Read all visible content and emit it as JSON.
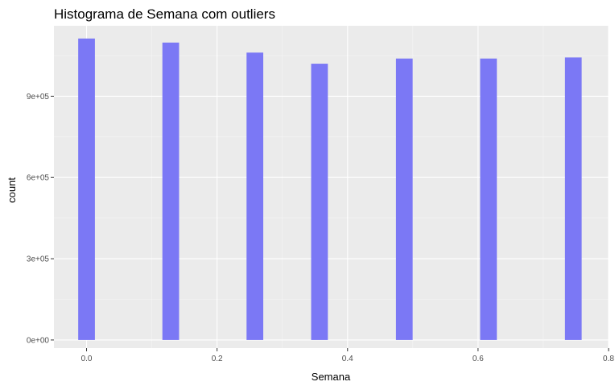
{
  "chart_data": {
    "type": "bar",
    "title": "Histograma de Semana com outliers",
    "xlabel": "Semana",
    "ylabel": "count",
    "xlim": [
      -0.05,
      0.8
    ],
    "ylim": [
      -30000,
      1160000
    ],
    "x_ticks": [
      0.0,
      0.2,
      0.4,
      0.6,
      0.8
    ],
    "x_tick_labels": [
      "0.0",
      "0.2",
      "0.4",
      "0.6",
      "0.8"
    ],
    "y_ticks": [
      0,
      300000,
      600000,
      900000
    ],
    "y_tick_labels": [
      "0e+00",
      "3e+05",
      "6e+05",
      "9e+05"
    ],
    "bar_width": 0.0256,
    "bars": [
      {
        "x": 0.0,
        "count": 1113000
      },
      {
        "x": 0.129,
        "count": 1098000
      },
      {
        "x": 0.258,
        "count": 1061000
      },
      {
        "x": 0.357,
        "count": 1020000
      },
      {
        "x": 0.487,
        "count": 1039000
      },
      {
        "x": 0.616,
        "count": 1039000
      },
      {
        "x": 0.746,
        "count": 1043000
      }
    ],
    "grid": true,
    "colors": {
      "bar": "#7b78f5",
      "panel": "#ebebeb",
      "grid_major": "#ffffff",
      "grid_minor": "#f5f5f5"
    }
  }
}
